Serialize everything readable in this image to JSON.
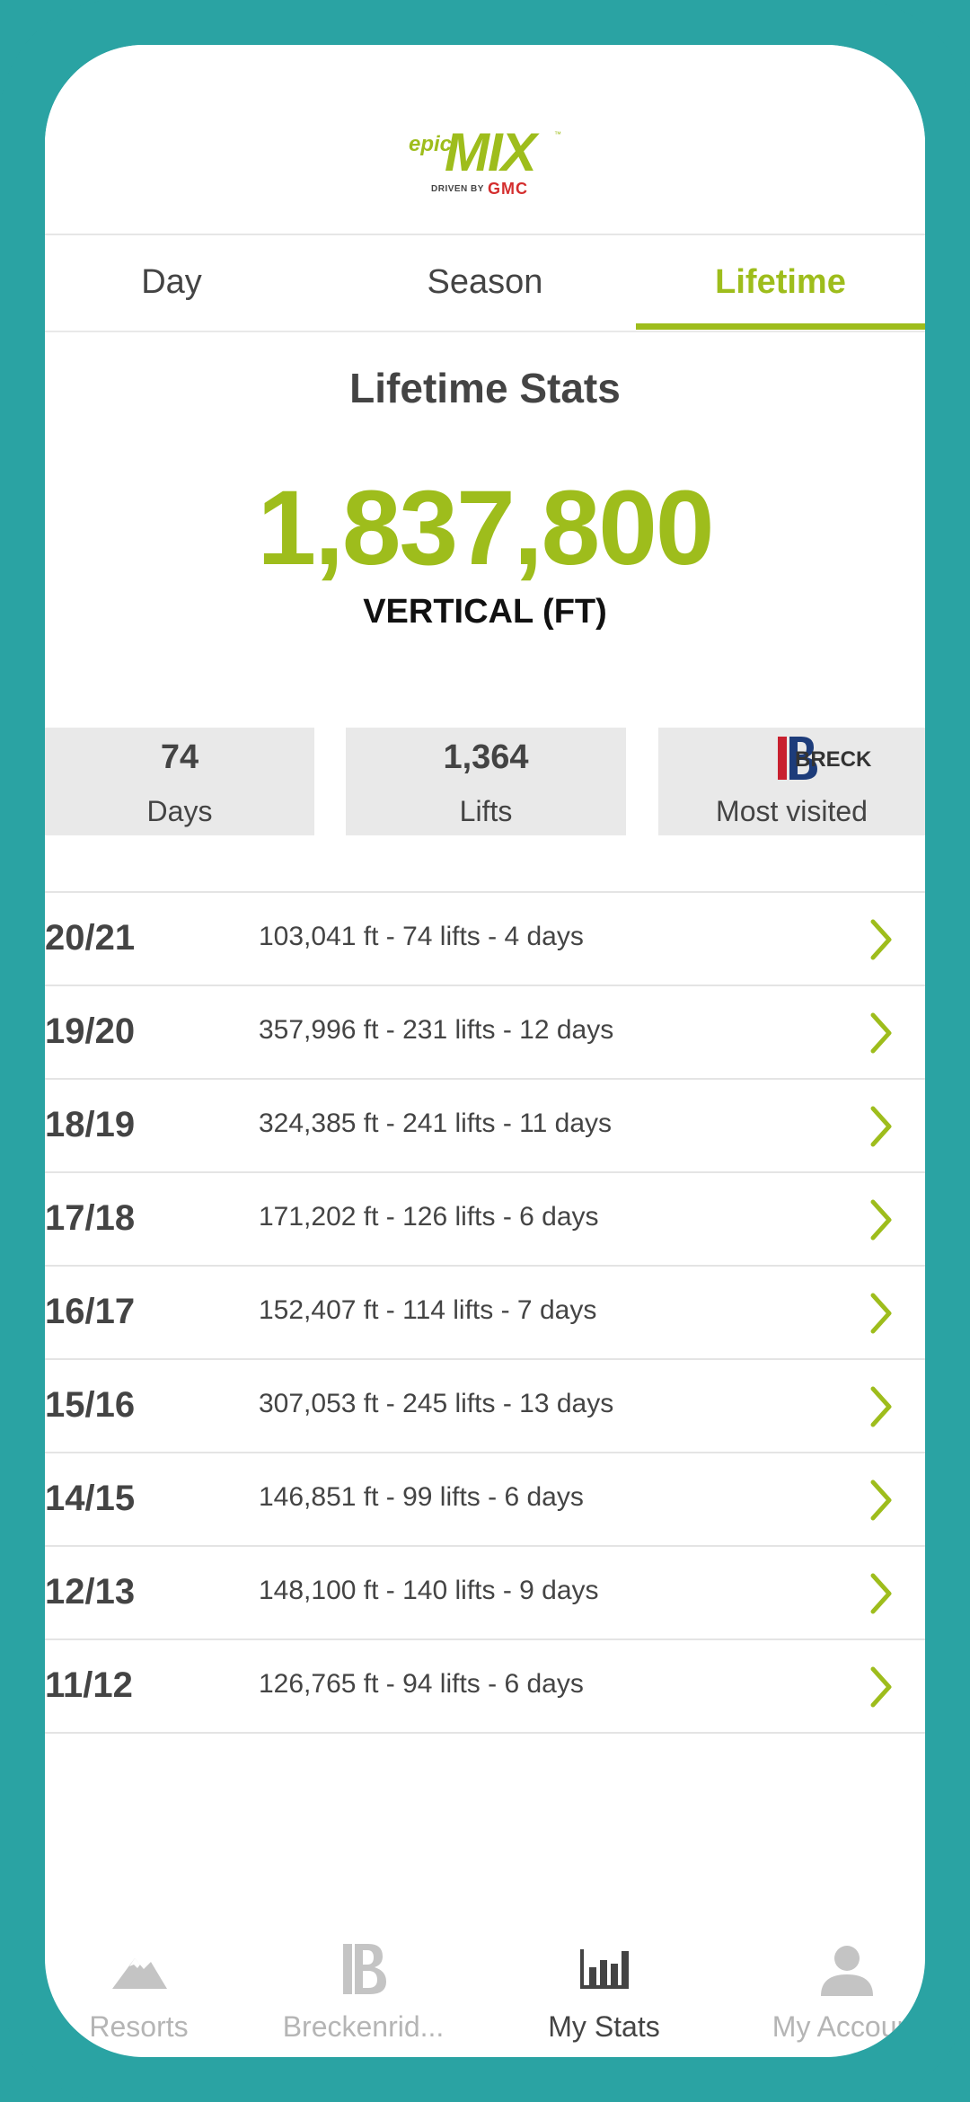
{
  "header": {
    "logo": {
      "epic": "epic",
      "mix": "MIX",
      "tm": "™",
      "driven_by": "DRIVEN BY",
      "gmc": "GMC"
    }
  },
  "tabs": [
    {
      "label": "Day",
      "active": false
    },
    {
      "label": "Season",
      "active": false
    },
    {
      "label": "Lifetime",
      "active": true
    }
  ],
  "stats": {
    "title": "Lifetime Stats",
    "vertical_value": "1,837,800",
    "vertical_label": "VERTICAL (FT)"
  },
  "summary": {
    "days_value": "74",
    "days_label": "Days",
    "lifts_value": "1,364",
    "lifts_label": "Lifts",
    "most_visited_logo_text": "BRECK",
    "most_visited_label": "Most visited"
  },
  "seasons": [
    {
      "season": "20/21",
      "detail": "103,041 ft - 74 lifts - 4 days"
    },
    {
      "season": "19/20",
      "detail": "357,996 ft - 231 lifts - 12 days"
    },
    {
      "season": "18/19",
      "detail": "324,385 ft - 241 lifts - 11 days"
    },
    {
      "season": "17/18",
      "detail": "171,202 ft - 126 lifts - 6 days"
    },
    {
      "season": "16/17",
      "detail": "152,407 ft - 114 lifts - 7 days"
    },
    {
      "season": "15/16",
      "detail": "307,053 ft - 245 lifts - 13 days"
    },
    {
      "season": "14/15",
      "detail": "146,851 ft - 99 lifts - 6 days"
    },
    {
      "season": "12/13",
      "detail": "148,100 ft - 140 lifts - 9 days"
    },
    {
      "season": "11/12",
      "detail": "126,765 ft - 94 lifts - 6 days"
    }
  ],
  "bottom_nav": [
    {
      "label": "Resorts",
      "icon": "mountain-icon",
      "active": false
    },
    {
      "label": "Breckenrid...",
      "icon": "breckenridge-logo-icon",
      "active": false
    },
    {
      "label": "My Stats",
      "icon": "bar-chart-icon",
      "active": true
    },
    {
      "label": "My Account",
      "icon": "user-icon",
      "active": false
    }
  ],
  "colors": {
    "accent": "#9ebd1c",
    "frame": "#2aa3a3",
    "text": "#444444",
    "box_bg": "#e9e9e9",
    "breck_red": "#c8202f",
    "breck_blue": "#1d3c7a"
  }
}
